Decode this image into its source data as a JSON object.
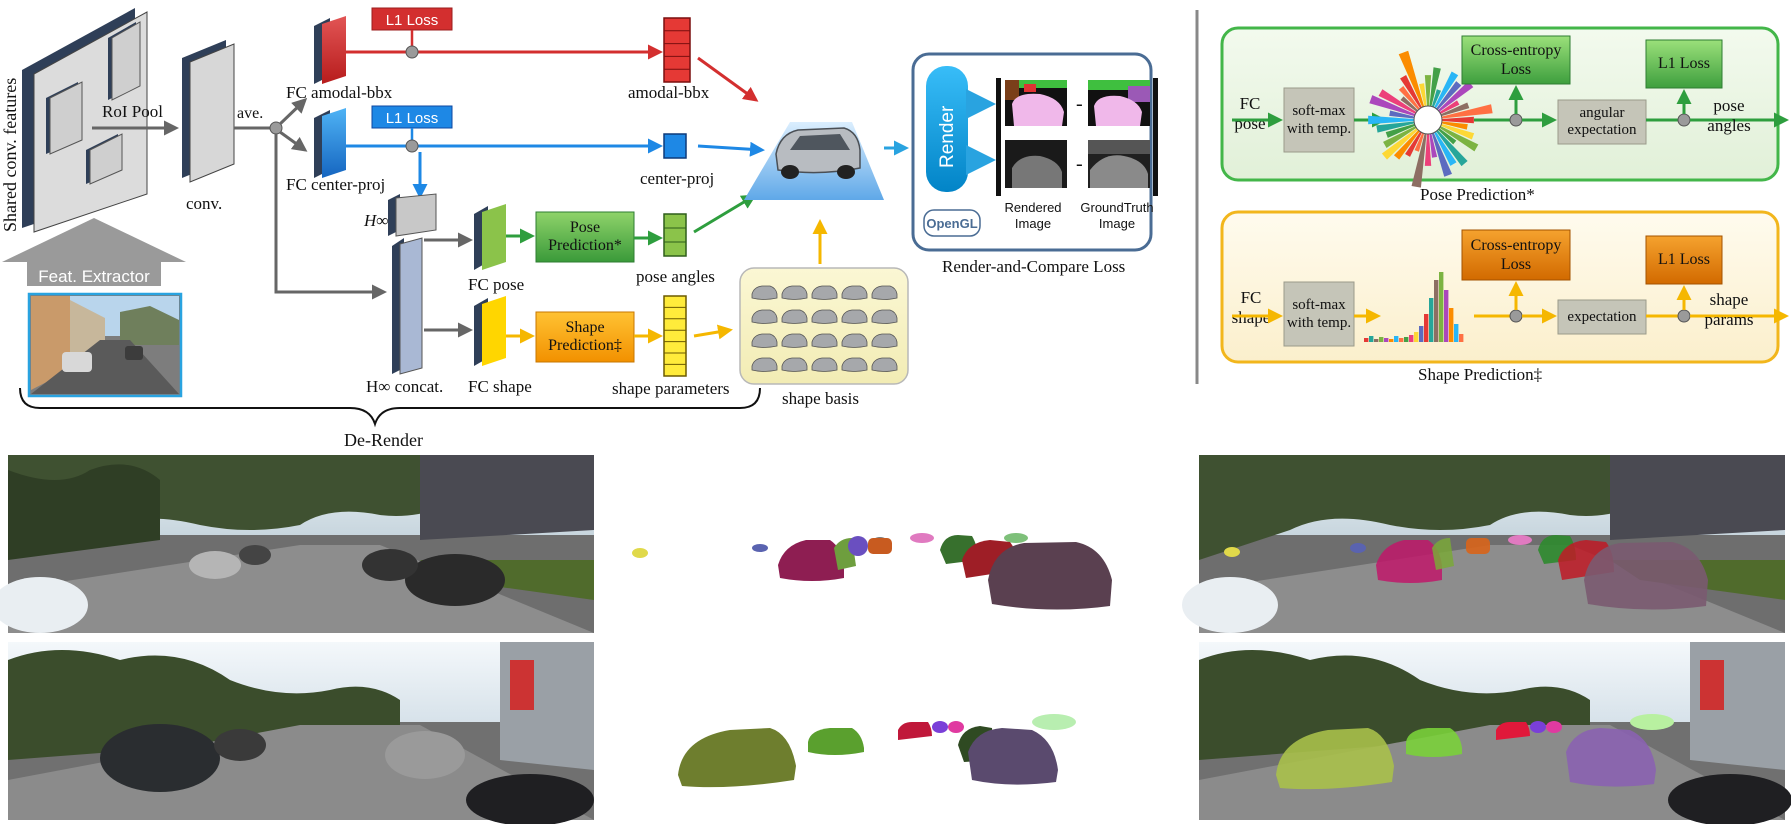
{
  "colors": {
    "red": "#d32f2f",
    "blue": "#1e88e5",
    "green": "#2e9e3e",
    "yellow": "#f5b700",
    "gray": "#666666",
    "panel_green_border": "#43b649",
    "panel_yellow_border": "#f2b61c",
    "render_blue": "#0ea5e9"
  },
  "pipeline": {
    "shared_features_label": "Shared conv. features",
    "roi_pool_label": "RoI Pool",
    "feat_extractor_label": "Feat. Extractor",
    "conv_label": "conv.",
    "ave_label": "ave.",
    "fc_amodal_label": "FC amodal-bbx",
    "fc_center_label": "FC center-proj",
    "h_inf_top": "H∞",
    "h_inf_concat": "H∞ concat.",
    "l1_loss_red": "L1 Loss",
    "l1_loss_blue": "L1 Loss",
    "amodal_output": "amodal-bbx",
    "center_output": "center-proj",
    "fc_pose_label": "FC pose",
    "fc_shape_label": "FC shape",
    "pose_prediction_box": "Pose Prediction*",
    "shape_prediction_box": "Shape Prediction‡",
    "pose_angles_output": "pose angles",
    "shape_params_output": "shape parameters",
    "shape_basis_label": "shape basis",
    "de_render_label": "De-Render"
  },
  "render_box": {
    "render_label": "Render",
    "opengl_label": "OpenGL",
    "rendered_image_label": "Rendered Image",
    "groundtruth_image_label": "GroundTruth Image",
    "minus": "-",
    "caption": "Render-and-Compare Loss"
  },
  "pose_panel": {
    "input_label": "FC pose",
    "softmax_label": "soft-max with temp.",
    "cross_entropy": "Cross-entropy Loss",
    "l1_loss": "L1 Loss",
    "angular_expectation": "angular expectation",
    "output_label": "pose angles",
    "caption": "Pose Prediction*"
  },
  "shape_panel": {
    "input_label": "FC shape",
    "softmax_label": "soft-max with temp.",
    "cross_entropy": "Cross-entropy Loss",
    "l1_loss": "L1 Loss",
    "expectation": "expectation",
    "output_label": "shape params",
    "caption": "Shape Prediction‡"
  }
}
